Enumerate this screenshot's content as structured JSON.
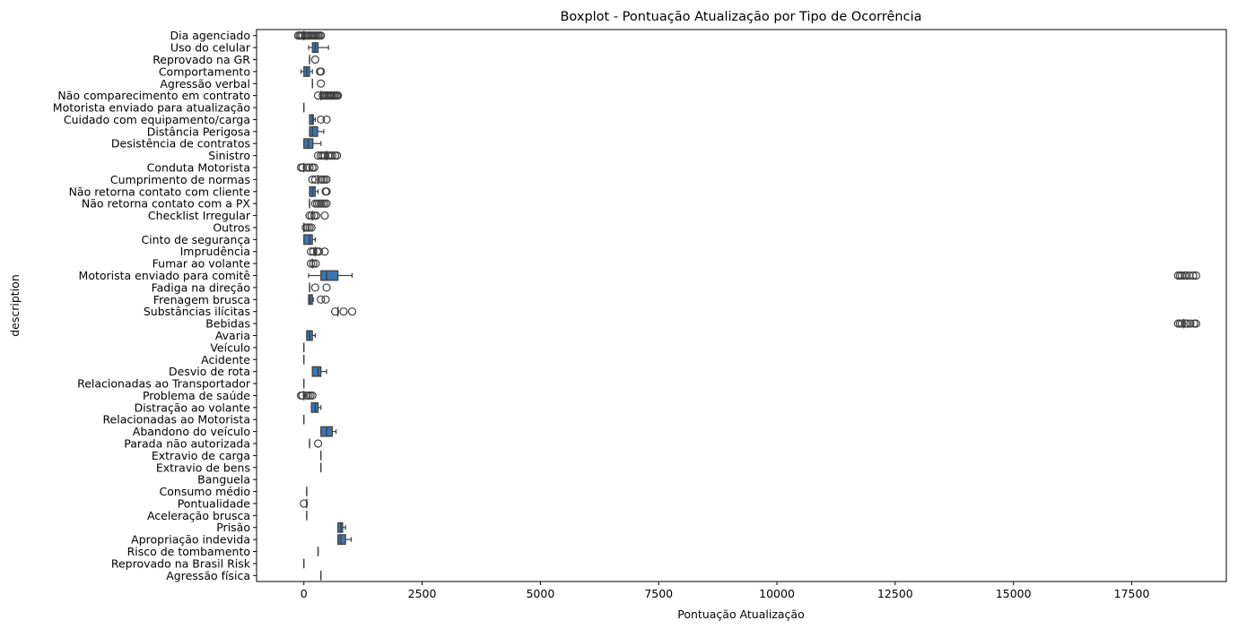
{
  "chart_data": {
    "type": "boxplot",
    "title": "Boxplot - Pontuação Atualização por Tipo de Ocorrência",
    "xlabel": "Pontuação Atualização",
    "ylabel": "description",
    "xlim": [
      -1000,
      19500
    ],
    "xticks": [
      0,
      2500,
      5000,
      7500,
      10000,
      12500,
      15000,
      17500
    ],
    "grid": false,
    "box_color": "#3a75af",
    "line_color": "#3f3f3f",
    "categories": [
      {
        "name": "Dia agenciado",
        "q1": 0,
        "median": 0,
        "q3": 0,
        "whisker_low": 0,
        "whisker_high": 0,
        "outliers": [
          -120,
          -90,
          -60,
          -30,
          30,
          60,
          90,
          120,
          150,
          180,
          210,
          240,
          270,
          300,
          330,
          360
        ]
      },
      {
        "name": "Uso do celular",
        "q1": 180,
        "median": 240,
        "q3": 300,
        "whisker_low": 100,
        "whisker_high": 520,
        "outliers": []
      },
      {
        "name": "Reprovado na GR",
        "q1": 120,
        "median": 120,
        "q3": 120,
        "whisker_low": 120,
        "whisker_high": 120,
        "outliers": [
          240
        ]
      },
      {
        "name": "Comportamento",
        "q1": 0,
        "median": 60,
        "q3": 120,
        "whisker_low": -60,
        "whisker_high": 180,
        "outliers": [
          340,
          360
        ]
      },
      {
        "name": "Agressão verbal",
        "q1": 180,
        "median": 180,
        "q3": 180,
        "whisker_low": 180,
        "whisker_high": 180,
        "outliers": [
          360
        ]
      },
      {
        "name": "Não comparecimento em contrato",
        "q1": 360,
        "median": 360,
        "q3": 360,
        "whisker_low": 360,
        "whisker_high": 360,
        "outliers": [
          300,
          400,
          430,
          460,
          490,
          520,
          550,
          580,
          610,
          640,
          670,
          700,
          720
        ]
      },
      {
        "name": "Motorista enviado para atualização",
        "q1": 0,
        "median": 0,
        "q3": 0,
        "whisker_low": 0,
        "whisker_high": 0,
        "outliers": []
      },
      {
        "name": "Cuidado com equipamento/carga",
        "q1": 120,
        "median": 180,
        "q3": 200,
        "whisker_low": 120,
        "whisker_high": 240,
        "outliers": [
          360,
          480
        ]
      },
      {
        "name": "Distância Perigosa",
        "q1": 120,
        "median": 180,
        "q3": 290,
        "whisker_low": 120,
        "whisker_high": 420,
        "outliers": []
      },
      {
        "name": "Desistência de contratos",
        "q1": 0,
        "median": 90,
        "q3": 190,
        "whisker_low": 0,
        "whisker_high": 360,
        "outliers": []
      },
      {
        "name": "Sinistro",
        "q1": 480,
        "median": 480,
        "q3": 480,
        "whisker_low": 480,
        "whisker_high": 480,
        "outliers": [
          300,
          360,
          400,
          440,
          520,
          560,
          600,
          660,
          700
        ]
      },
      {
        "name": "Conduta Motorista",
        "q1": 0,
        "median": 0,
        "q3": 0,
        "whisker_low": 0,
        "whisker_high": 0,
        "outliers": [
          -60,
          -30,
          60,
          120,
          180,
          220
        ]
      },
      {
        "name": "Cumprimento de normas",
        "q1": 300,
        "median": 300,
        "q3": 300,
        "whisker_low": 300,
        "whisker_high": 300,
        "outliers": [
          180,
          240,
          360,
          400,
          440,
          480
        ]
      },
      {
        "name": "Não retorna contato com cliente",
        "q1": 120,
        "median": 180,
        "q3": 240,
        "whisker_low": 120,
        "whisker_high": 300,
        "outliers": [
          460,
          480
        ]
      },
      {
        "name": "Não retorna contato com a PX",
        "q1": 120,
        "median": 120,
        "q3": 120,
        "whisker_low": 120,
        "whisker_high": 120,
        "outliers": [
          240,
          280,
          320,
          360,
          400,
          440,
          480
        ]
      },
      {
        "name": "Checklist Irregular",
        "q1": 180,
        "median": 180,
        "q3": 180,
        "whisker_low": 180,
        "whisker_high": 180,
        "outliers": [
          120,
          160,
          220,
          260,
          440
        ]
      },
      {
        "name": "Outros",
        "q1": 0,
        "median": 0,
        "q3": 0,
        "whisker_low": 0,
        "whisker_high": 0,
        "outliers": [
          40,
          80,
          120,
          160
        ]
      },
      {
        "name": "Cinto de segurança",
        "q1": 0,
        "median": 120,
        "q3": 180,
        "whisker_low": 0,
        "whisker_high": 240,
        "outliers": []
      },
      {
        "name": "Imprudência",
        "q1": 240,
        "median": 240,
        "q3": 240,
        "whisker_low": 240,
        "whisker_high": 240,
        "outliers": [
          150,
          200,
          280,
          320,
          440
        ]
      },
      {
        "name": "Fumar ao volante",
        "q1": 180,
        "median": 180,
        "q3": 180,
        "whisker_low": 180,
        "whisker_high": 180,
        "outliers": [
          150,
          200,
          250
        ]
      },
      {
        "name": "Motorista enviado para comitê",
        "q1": 360,
        "median": 480,
        "q3": 720,
        "whisker_low": 100,
        "whisker_high": 1020,
        "outliers": [
          18480,
          18520,
          18560,
          18620,
          18660,
          18720,
          18800,
          18860
        ]
      },
      {
        "name": "Fadiga na direção",
        "q1": 120,
        "median": 120,
        "q3": 120,
        "whisker_low": 120,
        "whisker_high": 120,
        "outliers": [
          240,
          480
        ]
      },
      {
        "name": "Frenagem brusca",
        "q1": 100,
        "median": 130,
        "q3": 180,
        "whisker_low": 100,
        "whisker_high": 200,
        "outliers": [
          360,
          460
        ]
      },
      {
        "name": "Substâncias ilícitas",
        "q1": 720,
        "median": 720,
        "q3": 720,
        "whisker_low": 720,
        "whisker_high": 720,
        "outliers": [
          660,
          840,
          1020
        ]
      },
      {
        "name": "Bebidas",
        "q1": 18600,
        "median": 18600,
        "q3": 18600,
        "whisker_low": 18600,
        "whisker_high": 18600,
        "outliers": [
          18480,
          18520,
          18560,
          18640,
          18680,
          18740,
          18820,
          18860
        ]
      },
      {
        "name": "Avaria",
        "q1": 60,
        "median": 120,
        "q3": 180,
        "whisker_low": 60,
        "whisker_high": 240,
        "outliers": []
      },
      {
        "name": "Veículo",
        "q1": 0,
        "median": 0,
        "q3": 0,
        "whisker_low": 0,
        "whisker_high": 0,
        "outliers": []
      },
      {
        "name": "Acidente",
        "q1": 0,
        "median": 0,
        "q3": 0,
        "whisker_low": 0,
        "whisker_high": 0,
        "outliers": []
      },
      {
        "name": "Desvio de rota",
        "q1": 180,
        "median": 300,
        "q3": 360,
        "whisker_low": 180,
        "whisker_high": 480,
        "outliers": []
      },
      {
        "name": "Relacionadas ao Transportador",
        "q1": 0,
        "median": 0,
        "q3": 0,
        "whisker_low": 0,
        "whisker_high": 0,
        "outliers": []
      },
      {
        "name": "Problema de saúde",
        "q1": 0,
        "median": 0,
        "q3": 0,
        "whisker_low": 0,
        "whisker_high": 0,
        "outliers": [
          -60,
          -30,
          60,
          100,
          140,
          180
        ]
      },
      {
        "name": "Distração ao volante",
        "q1": 160,
        "median": 240,
        "q3": 300,
        "whisker_low": 160,
        "whisker_high": 360,
        "outliers": []
      },
      {
        "name": "Relacionadas ao Motorista",
        "q1": 0,
        "median": 0,
        "q3": 0,
        "whisker_low": 0,
        "whisker_high": 0,
        "outliers": []
      },
      {
        "name": "Abandono do veículo",
        "q1": 360,
        "median": 480,
        "q3": 600,
        "whisker_low": 360,
        "whisker_high": 680,
        "outliers": []
      },
      {
        "name": "Parada não autorizada",
        "q1": 120,
        "median": 120,
        "q3": 120,
        "whisker_low": 120,
        "whisker_high": 120,
        "outliers": [
          300
        ]
      },
      {
        "name": "Extravio de carga",
        "q1": 360,
        "median": 360,
        "q3": 360,
        "whisker_low": 360,
        "whisker_high": 360,
        "outliers": []
      },
      {
        "name": "Extravio de bens",
        "q1": 360,
        "median": 360,
        "q3": 360,
        "whisker_low": 360,
        "whisker_high": 360,
        "outliers": []
      },
      {
        "name": "Banguela",
        "q1": null,
        "median": null,
        "q3": null,
        "whisker_low": null,
        "whisker_high": null,
        "outliers": []
      },
      {
        "name": "Consumo médio",
        "q1": 60,
        "median": 60,
        "q3": 60,
        "whisker_low": 60,
        "whisker_high": 60,
        "outliers": []
      },
      {
        "name": "Pontualidade",
        "q1": 60,
        "median": 60,
        "q3": 60,
        "whisker_low": 60,
        "whisker_high": 60,
        "outliers": [
          0
        ]
      },
      {
        "name": "Aceleração brusca",
        "q1": 60,
        "median": 60,
        "q3": 60,
        "whisker_low": 60,
        "whisker_high": 60,
        "outliers": []
      },
      {
        "name": "Prisão",
        "q1": 720,
        "median": 780,
        "q3": 820,
        "whisker_low": 720,
        "whisker_high": 880,
        "outliers": []
      },
      {
        "name": "Apropriação indevida",
        "q1": 720,
        "median": 780,
        "q3": 880,
        "whisker_low": 720,
        "whisker_high": 1000,
        "outliers": []
      },
      {
        "name": "Risco de tombamento",
        "q1": 300,
        "median": 300,
        "q3": 300,
        "whisker_low": 300,
        "whisker_high": 300,
        "outliers": []
      },
      {
        "name": "Reprovado na Brasil Risk",
        "q1": 0,
        "median": 0,
        "q3": 0,
        "whisker_low": 0,
        "whisker_high": 0,
        "outliers": []
      },
      {
        "name": "Agressão física",
        "q1": 360,
        "median": 360,
        "q3": 360,
        "whisker_low": 360,
        "whisker_high": 360,
        "outliers": []
      }
    ]
  }
}
